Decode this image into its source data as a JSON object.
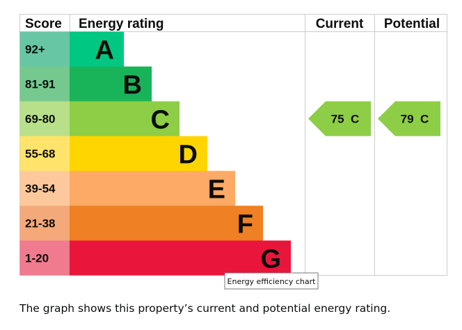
{
  "chart_data": {
    "type": "table",
    "headers": {
      "score": "Score",
      "rating": "Energy rating",
      "current": "Current",
      "potential": "Potential"
    },
    "bands": [
      {
        "score": "92+",
        "letter": "A",
        "color": "#00c781",
        "score_color": "#67c7a5"
      },
      {
        "score": "81-91",
        "letter": "B",
        "color": "#19b459",
        "score_color": "#75c98f"
      },
      {
        "score": "69-80",
        "letter": "C",
        "color": "#8dce46",
        "score_color": "#b8e08a"
      },
      {
        "score": "55-68",
        "letter": "D",
        "color": "#ffd500",
        "score_color": "#ffe36a"
      },
      {
        "score": "39-54",
        "letter": "E",
        "color": "#fcaa65",
        "score_color": "#fdc99c"
      },
      {
        "score": "21-38",
        "letter": "F",
        "color": "#ef8023",
        "score_color": "#f4a97a"
      },
      {
        "score": "1-20",
        "letter": "G",
        "color": "#e9153b",
        "score_color": "#f07a8e"
      }
    ],
    "current": {
      "value": 75,
      "band": "C",
      "label": "75  C"
    },
    "potential": {
      "value": 79,
      "band": "C",
      "label": "79  C"
    }
  },
  "tooltip": "Energy efficiency chart",
  "caption": "The graph shows this property’s current and potential energy rating."
}
